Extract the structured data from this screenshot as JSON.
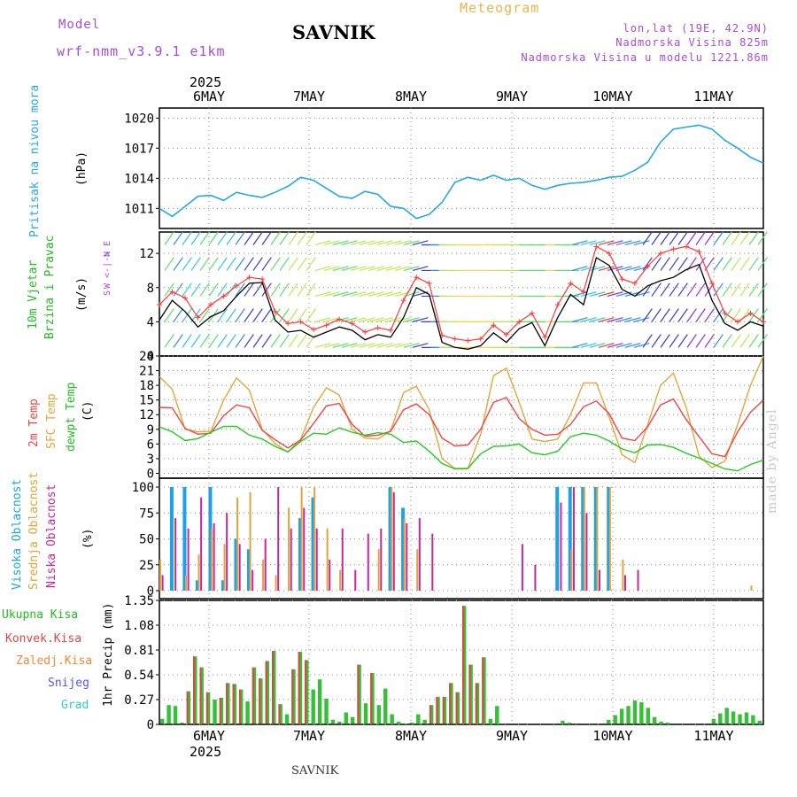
{
  "header": {
    "model_label": "Model",
    "model_name": "wrf-nmm_v3.9.1 e1km",
    "place": "SAVNIK",
    "product": "Meteogram",
    "lonlat": "lon,lat (19E, 42.9N)",
    "altitude": "Nadmorska Visina 825m",
    "model_altitude": "Nadmorska Visina u modelu 1221.86m"
  },
  "footer": {
    "place": "SAVNIK",
    "credit": "made by Angel"
  },
  "colors": {
    "pressure": "#26a9e0",
    "temp2m": "#f04545",
    "sfc": "#e3a63a",
    "dewpt": "#22cc22",
    "wspeed": "#000000",
    "pink": "#ff3a3a",
    "high": "#1aa3e8",
    "mid": "#e0a43a",
    "low": "#c8279b",
    "total": "#36c036",
    "conv": "#e04545"
  },
  "chart_data": [
    {
      "type": "line",
      "id": "pressure",
      "ylabel": "Pritisak na nivou mora",
      "unit": "(hPa)",
      "ylim": [
        1009,
        1021
      ],
      "yticks": [
        1011,
        1014,
        1017,
        1020
      ],
      "top_year": "2025",
      "top_ticks": [
        "6MAY",
        "7MAY",
        "8MAY",
        "9MAY",
        "10MAY",
        "11MAY"
      ],
      "x_hours": [
        0,
        3,
        6,
        9,
        12,
        15,
        18,
        21,
        24,
        27,
        30,
        33,
        36,
        39,
        42,
        45,
        48,
        51,
        54,
        57,
        60,
        63,
        66,
        69,
        72,
        75,
        78,
        81,
        84,
        87,
        90,
        93,
        96,
        99,
        102,
        105,
        108,
        111,
        114,
        117,
        120,
        123,
        126,
        129,
        132,
        135,
        138,
        141
      ],
      "values": [
        1011.0,
        1010.2,
        1011.2,
        1012.2,
        1012.3,
        1011.8,
        1012.6,
        1012.3,
        1012.1,
        1012.6,
        1013.2,
        1014.1,
        1013.8,
        1013.0,
        1012.2,
        1012.0,
        1012.7,
        1012.4,
        1011.2,
        1011.0,
        1010.0,
        1010.4,
        1011.6,
        1013.6,
        1014.1,
        1013.8,
        1014.3,
        1013.8,
        1014.0,
        1013.3,
        1012.9,
        1013.3,
        1013.5,
        1013.6,
        1013.8,
        1014.1,
        1014.2,
        1014.8,
        1015.6,
        1017.6,
        1018.9,
        1019.1,
        1019.3,
        1018.9,
        1017.8,
        1017.0,
        1016.1,
        1015.5
      ]
    },
    {
      "type": "line",
      "id": "wind",
      "ylabel": [
        "10m Vjetar",
        "Brzina i Pravac"
      ],
      "unit": "(m/s)",
      "compass": [
        "N",
        "W <-|-> E",
        "S"
      ],
      "ylim": [
        0,
        14.5
      ],
      "yticks": [
        0,
        4,
        8,
        12
      ],
      "series": [
        {
          "name": "wind speed",
          "values": [
            4.2,
            6.5,
            5.2,
            3.4,
            4.6,
            5.3,
            7.0,
            8.5,
            8.6,
            4.2,
            2.8,
            3.0,
            2.2,
            2.8,
            3.4,
            3.0,
            1.9,
            2.5,
            2.2,
            4.5,
            8.0,
            7.2,
            1.6,
            1.0,
            0.8,
            1.2,
            2.7,
            1.6,
            3.2,
            3.9,
            1.2,
            4.5,
            7.2,
            6.0,
            11.5,
            10.6,
            7.8,
            7.0,
            8.2,
            8.8,
            9.2,
            10.1,
            10.7,
            6.5,
            3.8,
            3.0,
            4.0,
            3.5
          ]
        },
        {
          "name": "gust",
          "values": [
            6.0,
            7.5,
            6.8,
            4.5,
            6.0,
            7.0,
            8.2,
            9.2,
            9.0,
            5.2,
            3.8,
            4.0,
            3.1,
            3.6,
            4.3,
            3.8,
            2.8,
            3.3,
            3.0,
            6.5,
            9.2,
            8.5,
            2.4,
            2.0,
            1.8,
            2.0,
            3.6,
            2.5,
            4.0,
            5.0,
            2.2,
            6.0,
            8.5,
            7.5,
            12.8,
            12.0,
            9.0,
            8.5,
            10.5,
            12.0,
            12.5,
            12.8,
            12.2,
            8.5,
            5.0,
            4.0,
            5.0,
            4.0
          ]
        },
        {
          "name": "barb rows",
          "values": [
            1,
            4,
            7,
            10,
            13
          ]
        }
      ]
    },
    {
      "type": "line",
      "id": "temp",
      "ylabel": [
        "2m Temp",
        "SFC Temp",
        "dewpt Temp"
      ],
      "unit": "(C)",
      "ylim": [
        -1,
        24
      ],
      "yticks": [
        0,
        3,
        6,
        9,
        12,
        15,
        18,
        21,
        24
      ],
      "series": [
        {
          "name": "2m Temp",
          "values": [
            13.5,
            13.4,
            9.2,
            8.0,
            8.2,
            11.8,
            14.0,
            13.4,
            8.8,
            6.9,
            5.2,
            6.8,
            10.2,
            13.8,
            14.3,
            10.0,
            7.6,
            7.8,
            8.6,
            13.0,
            14.2,
            12.0,
            7.2,
            5.6,
            5.8,
            9.0,
            14.5,
            15.5,
            11.2,
            9.0,
            7.8,
            8.0,
            10.0,
            13.6,
            14.8,
            12.2,
            7.2,
            6.7,
            9.5,
            14.0,
            15.2,
            11.0,
            7.5,
            4.0,
            3.4,
            8.5,
            12.5,
            15.0
          ]
        },
        {
          "name": "SFC Temp",
          "values": [
            19.8,
            17.2,
            9.0,
            8.5,
            8.6,
            15.0,
            19.5,
            17.0,
            9.0,
            6.1,
            4.3,
            7.0,
            13.5,
            17.5,
            16.0,
            9.0,
            7.2,
            7.0,
            8.7,
            16.5,
            17.8,
            13.0,
            3.0,
            1.0,
            1.0,
            8.0,
            20.0,
            21.5,
            14.5,
            7.0,
            6.5,
            7.0,
            12.0,
            18.5,
            18.5,
            11.5,
            3.8,
            2.2,
            10.0,
            18.0,
            20.5,
            13.5,
            3.5,
            1.2,
            2.5,
            10.0,
            18.0,
            24.0
          ]
        },
        {
          "name": "dewpt Temp",
          "values": [
            9.5,
            8.5,
            6.7,
            7.1,
            8.4,
            9.6,
            9.6,
            7.8,
            7.0,
            5.5,
            4.4,
            6.5,
            8.2,
            8.0,
            9.3,
            8.4,
            7.8,
            8.3,
            8.0,
            6.3,
            6.6,
            4.5,
            2.0,
            0.9,
            1.0,
            4.0,
            5.5,
            5.6,
            6.0,
            4.2,
            3.8,
            4.5,
            7.5,
            8.2,
            7.8,
            6.6,
            5.0,
            4.2,
            5.8,
            5.9,
            5.3,
            4.1,
            3.1,
            2.0,
            0.9,
            0.5,
            1.8,
            2.7
          ]
        }
      ]
    },
    {
      "type": "bar",
      "id": "clouds",
      "ylabel": [
        "Visoka Oblacnost",
        "Srednja Oblacnost",
        "Niska Oblacnost"
      ],
      "unit": "(%)",
      "ylim": [
        0,
        100
      ],
      "yticks": [
        0,
        25,
        50,
        75,
        100
      ],
      "series": [
        {
          "name": "Visoka Oblacnost",
          "values": [
            0,
            100,
            100,
            10,
            100,
            10,
            50,
            40,
            0,
            0,
            0,
            70,
            90,
            0,
            0,
            0,
            0,
            0,
            100,
            80,
            0,
            0,
            0,
            0,
            0,
            0,
            0,
            0,
            0,
            0,
            0,
            100,
            100,
            100,
            100,
            100,
            0,
            0,
            0,
            0,
            0,
            0,
            0,
            0,
            0,
            0,
            0,
            0
          ]
        },
        {
          "name": "Srednja Oblacnost",
          "values": [
            30,
            0,
            15,
            35,
            60,
            45,
            90,
            95,
            30,
            15,
            80,
            100,
            100,
            60,
            20,
            0,
            0,
            40,
            100,
            70,
            40,
            0,
            0,
            0,
            0,
            0,
            0,
            0,
            0,
            0,
            0,
            0,
            40,
            100,
            100,
            100,
            30,
            0,
            0,
            0,
            0,
            0,
            0,
            0,
            0,
            0,
            5,
            0
          ]
        },
        {
          "name": "Niska Oblacnost",
          "values": [
            15,
            70,
            60,
            90,
            65,
            75,
            45,
            20,
            50,
            100,
            60,
            80,
            60,
            30,
            60,
            20,
            55,
            60,
            95,
            65,
            70,
            55,
            0,
            0,
            0,
            0,
            0,
            0,
            45,
            25,
            0,
            85,
            100,
            75,
            20,
            0,
            15,
            20,
            0,
            0,
            0,
            0,
            0,
            0,
            0,
            0,
            0,
            0
          ]
        }
      ]
    },
    {
      "type": "bar",
      "id": "precip",
      "ylabel": "1hr Precip (mm)",
      "legend": [
        "Ukupna Kisa",
        "Konvek.Kisa",
        "Zaledj.Kisa",
        "Snijeg",
        "Grad"
      ],
      "ylim": [
        0,
        1.35
      ],
      "yticks": [
        0,
        0.27,
        0.54,
        0.81,
        1.08,
        1.35
      ],
      "bottom_ticks": [
        "6MAY",
        "7MAY",
        "8MAY",
        "9MAY",
        "10MAY",
        "11MAY"
      ],
      "bottom_year": "2025",
      "series": [
        {
          "name": "Ukupna Kisa",
          "values": [
            0.06,
            0.21,
            0.2,
            0.02,
            0.36,
            0.74,
            0.62,
            0.35,
            0.27,
            0.29,
            0.45,
            0.44,
            0.38,
            0.25,
            0.62,
            0.5,
            0.69,
            0.8,
            0.22,
            0.11,
            0.6,
            0.79,
            0.7,
            0.38,
            0.49,
            0.28,
            0.05,
            0.03,
            0.13,
            0.08,
            0.65,
            0.23,
            0.56,
            0.21,
            0.39,
            0.11,
            0.03,
            0.01,
            0.02,
            0.11,
            0.05,
            0.21,
            0.3,
            0.3,
            0.45,
            0.35,
            1.29,
            0.65,
            0.45,
            0.73,
            0.06,
            0.2,
            0.0,
            0.0,
            0.0,
            0.0,
            0.0,
            0.0,
            0.0,
            0.0,
            0.0,
            0.04,
            0.02,
            0.0,
            0.0,
            0.0,
            0.0,
            0.0,
            0.05,
            0.1,
            0.17,
            0.2,
            0.26,
            0.24,
            0.18,
            0.08,
            0.03,
            0.02,
            0.0,
            0.0,
            0.0,
            0.0,
            0.0,
            0.0,
            0.06,
            0.12,
            0.18,
            0.14,
            0.11,
            0.13,
            0.1,
            0.04
          ]
        },
        {
          "name": "Konvek.Kisa",
          "values": [
            0.0,
            0.0,
            0.0,
            0.0,
            0.05,
            0.1,
            0.08,
            0.05,
            0.0,
            0.05,
            0.1,
            0.05,
            0.05,
            0.0,
            0.1,
            0.05,
            0.1,
            0.1,
            0.05,
            0.0,
            0.05,
            0.05,
            0.05,
            0.0,
            0.0,
            0.0,
            0.0,
            0.0,
            0.0,
            0.0,
            0.1,
            0.0,
            0.05,
            0.0,
            0.0,
            0.0,
            0.0,
            0.0,
            0.0,
            0.0,
            0.0,
            0.05,
            0.05,
            0.05,
            0.05,
            0.05,
            0.1,
            0.05,
            0.05,
            0.05,
            0.0,
            0.0,
            0.0,
            0.0,
            0.0,
            0.0,
            0.0,
            0.0,
            0.0,
            0.0,
            0.0,
            0.0,
            0.0,
            0.0,
            0.0,
            0.0,
            0.0,
            0.0,
            0.0,
            0.0,
            0.0,
            0.0,
            0.0,
            0.0,
            0.0,
            0.0,
            0.0,
            0.0,
            0.0,
            0.0,
            0.0,
            0.0,
            0.0,
            0.0,
            0.0,
            0.0,
            0.0,
            0.0,
            0.0,
            0.0,
            0.0,
            0.0
          ]
        }
      ]
    }
  ]
}
